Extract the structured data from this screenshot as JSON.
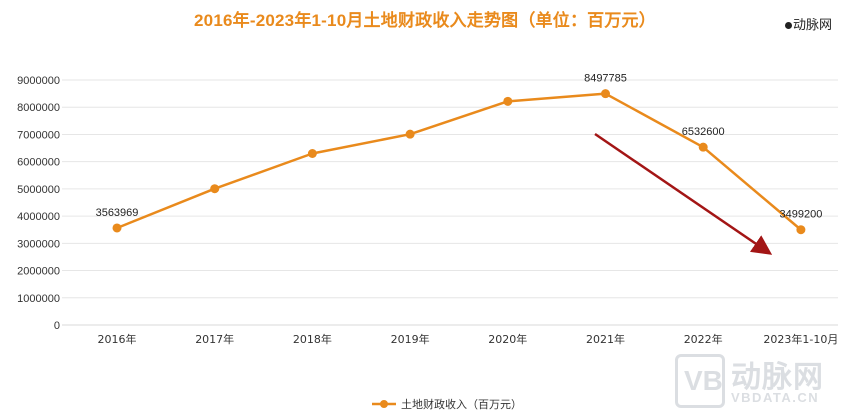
{
  "title": "2016年-2023年1-10月土地财政收入走势图（单位：百万元）",
  "brand_top": "动脉网",
  "watermark": {
    "cn": "动脉网",
    "en": "VBDATA.CN",
    "mark": "VB"
  },
  "colors": {
    "series": "#e98a1c",
    "arrow": "#a31515",
    "grid": "#e6e6e6",
    "axis_text": "#333333"
  },
  "chart_data": {
    "type": "line",
    "title": "2016年-2023年1-10月土地财政收入走势图（单位：百万元）",
    "categories": [
      "2016年",
      "2017年",
      "2018年",
      "2019年",
      "2020年",
      "2021年",
      "2022年",
      "2023年1-10月"
    ],
    "series": [
      {
        "name": "土地财政收入（百万元）",
        "values": [
          3563969,
          5006400,
          6300000,
          7010000,
          8215000,
          8497785,
          6532600,
          3499200
        ]
      }
    ],
    "data_labels": [
      "3563969",
      null,
      null,
      null,
      null,
      "8497785",
      "6532600",
      "3499200"
    ],
    "ylim": [
      0,
      9000000
    ],
    "yticks": [
      "0",
      "1000000",
      "2000000",
      "3000000",
      "4000000",
      "5000000",
      "6000000",
      "7000000",
      "8000000",
      "9000000"
    ],
    "grid": true,
    "legend_position": "bottom-center",
    "annotation": "downward-trend-arrow"
  }
}
